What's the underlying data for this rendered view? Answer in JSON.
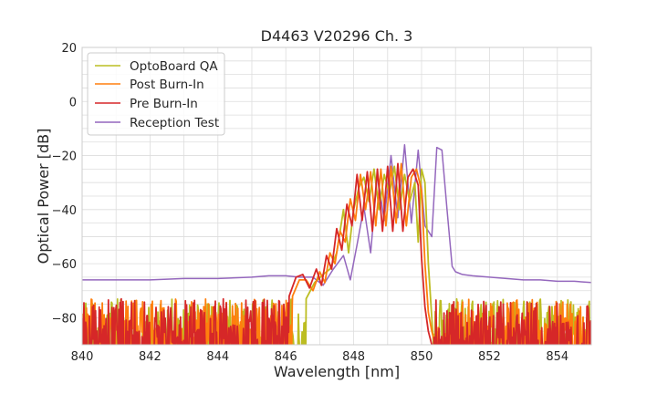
{
  "chart_data": {
    "type": "line",
    "title": "D4463 V20296 Ch. 3",
    "xlabel": "Wavelength [nm]",
    "ylabel": "Optical Power [dB]",
    "xlim": [
      840,
      855
    ],
    "ylim": [
      -90,
      20
    ],
    "xticks": [
      840,
      842,
      844,
      846,
      848,
      850,
      852,
      854
    ],
    "yticks": [
      20,
      0,
      -20,
      -40,
      -60,
      -80
    ],
    "ytick_labels": [
      "20",
      "0",
      "−20",
      "−40",
      "−60",
      "−80"
    ],
    "grid": true,
    "legend_position": "top-left",
    "noise_floor_range": [
      -90,
      -73
    ],
    "series": [
      {
        "name": "OptoBoard QA",
        "color": "#bcbd22",
        "noise_x_range": [
          840,
          846.6
        ],
        "x": [
          846.6,
          846.85,
          847.1,
          847.3,
          847.5,
          847.7,
          847.85,
          848.0,
          848.15,
          848.3,
          848.45,
          848.6,
          848.75,
          848.9,
          849.05,
          849.2,
          849.35,
          849.5,
          849.65,
          849.8,
          849.9,
          850.0,
          850.1,
          850.2,
          850.3,
          850.35
        ],
        "y": [
          -73,
          -67,
          -64,
          -62,
          -56,
          -40,
          -56,
          -40,
          -32,
          -28,
          -37,
          -25,
          -40,
          -27,
          -34,
          -24,
          -40,
          -27,
          -37,
          -30,
          -52,
          -25,
          -30,
          -60,
          -80,
          -90
        ],
        "noise_x_range_after": [
          850.35,
          855
        ]
      },
      {
        "name": "Post Burn-In",
        "color": "#ff7f0e",
        "noise_x_range": [
          840,
          846.2
        ],
        "x": [
          846.2,
          846.4,
          846.6,
          846.8,
          847.0,
          847.15,
          847.3,
          847.45,
          847.6,
          847.75,
          847.9,
          848.05,
          848.2,
          848.35,
          848.5,
          848.65,
          848.8,
          848.95,
          849.1,
          849.25,
          849.4,
          849.55,
          849.7,
          849.85,
          850.0,
          850.1,
          850.2,
          850.3,
          850.4
        ],
        "y": [
          -72,
          -66,
          -66,
          -70,
          -63,
          -67,
          -56,
          -60,
          -48,
          -52,
          -36,
          -44,
          -27,
          -40,
          -26,
          -46,
          -25,
          -46,
          -24,
          -45,
          -23,
          -46,
          -28,
          -25,
          -33,
          -60,
          -78,
          -85,
          -90
        ],
        "noise_x_range_after": [
          850.4,
          855
        ]
      },
      {
        "name": "Pre Burn-In",
        "color": "#d62728",
        "noise_x_range": [
          840,
          846.1
        ],
        "x": [
          846.1,
          846.3,
          846.5,
          846.7,
          846.9,
          847.05,
          847.2,
          847.35,
          847.5,
          847.65,
          847.8,
          847.95,
          848.1,
          848.25,
          848.4,
          848.55,
          848.7,
          848.85,
          849.0,
          849.15,
          849.3,
          849.45,
          849.6,
          849.75,
          849.9,
          850.0,
          850.1,
          850.2,
          850.3
        ],
        "y": [
          -72,
          -65,
          -64,
          -69,
          -62,
          -68,
          -57,
          -62,
          -47,
          -55,
          -38,
          -46,
          -27,
          -44,
          -26,
          -48,
          -25,
          -48,
          -24,
          -48,
          -23,
          -48,
          -28,
          -25,
          -31,
          -58,
          -76,
          -85,
          -90
        ],
        "noise_x_range_after": [
          850.3,
          855
        ]
      },
      {
        "name": "Reception Test",
        "color": "#9467bd",
        "x": [
          840,
          841,
          842,
          843,
          844,
          845,
          845.5,
          846,
          846.4,
          846.8,
          847.1,
          847.4,
          847.7,
          847.9,
          848.1,
          848.3,
          848.5,
          848.7,
          848.9,
          849.1,
          849.3,
          849.5,
          849.7,
          849.9,
          850.1,
          850.3,
          850.45,
          850.6,
          850.75,
          850.9,
          851.0,
          851.2,
          851.5,
          852,
          852.5,
          853,
          853.5,
          854,
          854.5,
          855
        ],
        "y": [
          -66,
          -66,
          -66,
          -65.5,
          -65.5,
          -65,
          -64.5,
          -64.5,
          -65,
          -65,
          -68,
          -62,
          -57,
          -66,
          -53,
          -39,
          -56,
          -27,
          -44,
          -20,
          -43,
          -16,
          -45,
          -18,
          -46,
          -50,
          -17,
          -18,
          -40,
          -61,
          -63,
          -64,
          -64.5,
          -65,
          -65.5,
          -66,
          -66,
          -66.5,
          -66.5,
          -67
        ]
      }
    ]
  }
}
